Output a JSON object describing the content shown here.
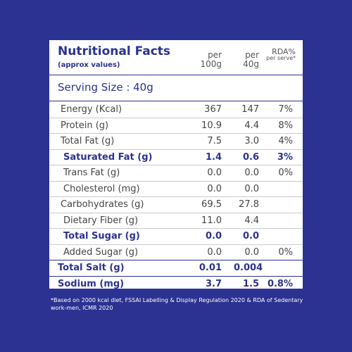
{
  "panel": {
    "title": "Nutritional Facts",
    "subtitle": "(approx values)",
    "col_per100": "per 100g",
    "col_per40": "per 40g",
    "col_rda": "RDA%",
    "col_rda_sub": "per serve*",
    "serving_size": "Serving Size : 40g"
  },
  "rows": [
    {
      "label": "Energy (Kcal)",
      "per100": "367",
      "per40": "147",
      "rda": "7%"
    },
    {
      "label": "Protein (g)",
      "per100": "10.9",
      "per40": "4.4",
      "rda": "8%"
    },
    {
      "label": "Total Fat (g)",
      "per100": "7.5",
      "per40": "3.0",
      "rda": "4%"
    },
    {
      "label": "Saturated Fat (g)",
      "per100": "1.4",
      "per40": "0.6",
      "rda": "3%"
    },
    {
      "label": "Trans Fat (g)",
      "per100": "0.0",
      "per40": "0.0",
      "rda": "0%"
    },
    {
      "label": "Cholesterol (mg)",
      "per100": "0.0",
      "per40": "0.0",
      "rda": ""
    },
    {
      "label": "Carbohydrates (g)",
      "per100": "69.5",
      "per40": "27.8",
      "rda": ""
    },
    {
      "label": "Dietary Fiber (g)",
      "per100": "11.0",
      "per40": "4.4",
      "rda": ""
    },
    {
      "label": "Total Sugar (g)",
      "per100": "0.0",
      "per40": "0.0",
      "rda": ""
    },
    {
      "label": "Added Sugar (g)",
      "per100": "0.0",
      "per40": "0.0",
      "rda": "0%"
    },
    {
      "label": "Total Salt (g)",
      "per100": "0.01",
      "per40": "0.004",
      "rda": ""
    },
    {
      "label": "Sodium (mg)",
      "per100": "3.7",
      "per40": "1.5",
      "rda": "0.8%"
    }
  ],
  "footnote": "*Based on 2000 kcal diet, FSSAI Labelling & Display Regulation 2020 & RDA of Sedentary work-men, ICMR 2020",
  "colors": {
    "background": "#2b3291",
    "panel": "#ffffff",
    "text": "#2b3291"
  }
}
